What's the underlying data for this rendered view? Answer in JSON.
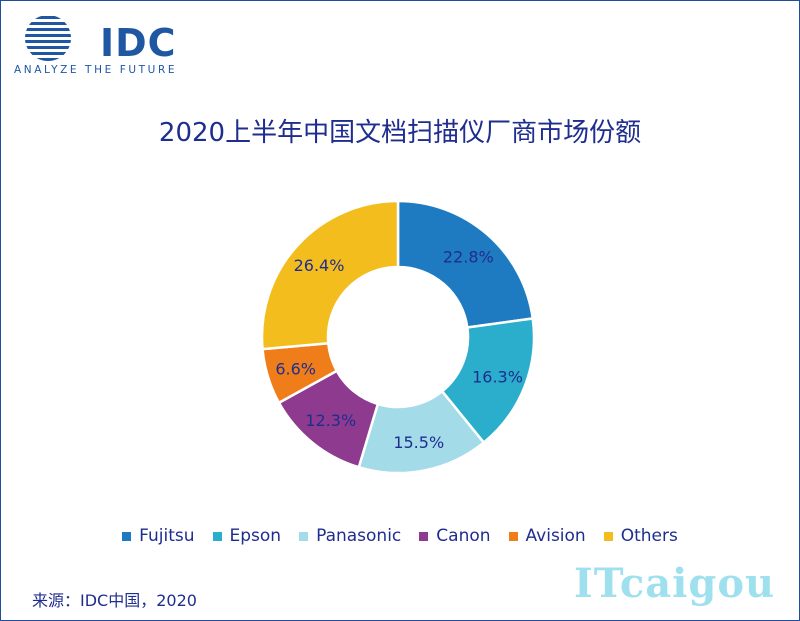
{
  "logo": {
    "name": "IDC",
    "tagline": "ANALYZE THE FUTURE"
  },
  "title": "2020上半年中国文档扫描仪厂商市场份额",
  "source": "来源：IDC中国，2020",
  "watermark": "ITcaigou",
  "chart_data": {
    "type": "pie",
    "donut": true,
    "title": "2020上半年中国文档扫描仪厂商市场份额",
    "legend_position": "bottom",
    "categories": [
      "Fujitsu",
      "Epson",
      "Panasonic",
      "Canon",
      "Avision",
      "Others"
    ],
    "values": [
      22.8,
      16.3,
      15.5,
      12.3,
      6.6,
      26.4
    ],
    "labels": [
      "22.8%",
      "16.3%",
      "15.5%",
      "12.3%",
      "6.6%",
      "26.4%"
    ],
    "colors": [
      "#1f7bc1",
      "#2aaecb",
      "#a3dbe8",
      "#8e3a8e",
      "#ef7d1a",
      "#f2bd1d"
    ]
  }
}
